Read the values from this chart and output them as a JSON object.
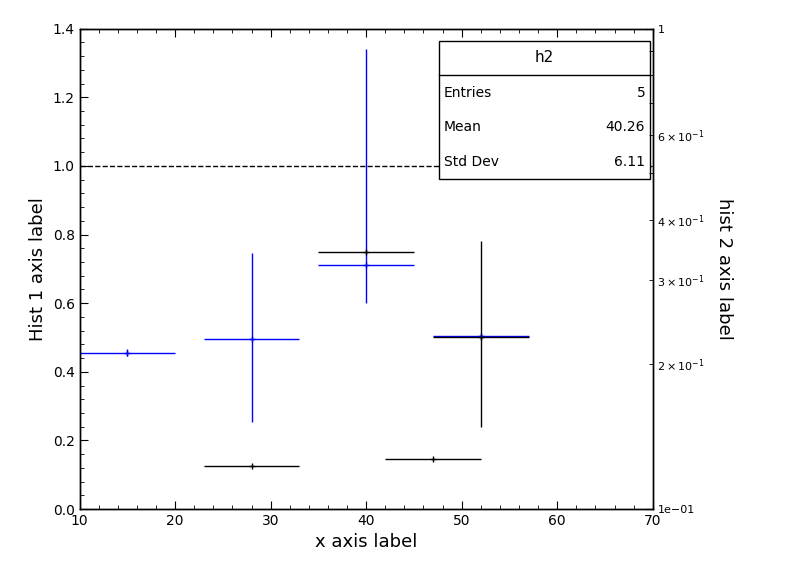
{
  "xlabel": "x axis label",
  "ylabel_left": "Hist 1 axis label",
  "ylabel_right": "hist 2 axis label",
  "xlim": [
    10,
    70
  ],
  "ylim_left": [
    0,
    1.4
  ],
  "ylim_right": [
    0.1,
    1.0
  ],
  "hline_y": 1.0,
  "blue_points": {
    "x": [
      15,
      28,
      40,
      52
    ],
    "y": [
      0.455,
      0.495,
      0.71,
      0.505
    ],
    "xerr": [
      5,
      5,
      5,
      5
    ],
    "yerr_lo": [
      0.01,
      0.24,
      0.11,
      0.0
    ],
    "yerr_hi": [
      0.01,
      0.25,
      0.63,
      0.0
    ],
    "color": "#0000ff"
  },
  "black_points": {
    "x": [
      28,
      40,
      47,
      52
    ],
    "y": [
      0.125,
      0.75,
      0.145,
      0.5
    ],
    "xerr": [
      5,
      5,
      5,
      5
    ],
    "yerr_lo": [
      0.0,
      0.0,
      0.0,
      0.26
    ],
    "yerr_hi": [
      0.0,
      0.0,
      0.0,
      0.28
    ],
    "color": "#000000"
  },
  "legend": {
    "title": "h2",
    "entries": 5,
    "mean": 40.26,
    "std_dev": 6.11
  },
  "background_color": "#ffffff",
  "dashed_line_style": "--",
  "dashed_line_color": "#000000"
}
